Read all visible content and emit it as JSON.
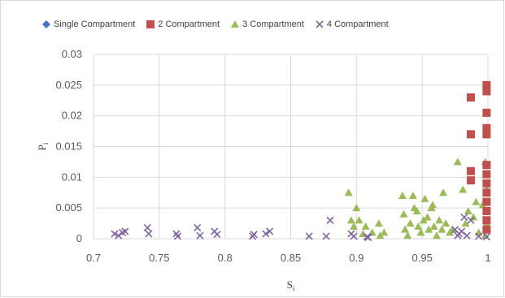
{
  "chart_data": {
    "type": "scatter",
    "title": "",
    "xlabel": "S",
    "xlabel_sub": "i",
    "ylabel": "P",
    "ylabel_sub": "i",
    "xlim": [
      0.7,
      1.0
    ],
    "ylim": [
      0,
      0.03
    ],
    "xticks": [
      "0.7",
      "0.75",
      "0.8",
      "0.85",
      "0.9",
      "0.95",
      "1"
    ],
    "yticks": [
      "0",
      "0.005",
      "0.01",
      "0.015",
      "0.02",
      "0.025",
      "0.03"
    ],
    "grid": true,
    "legend_position": "top",
    "series": [
      {
        "name": "Single Compartment",
        "marker": "diamond",
        "color": "#4472c4",
        "points": []
      },
      {
        "name": "2 Compartment",
        "marker": "square",
        "color": "#c0504d",
        "points": [
          [
            0.987,
            0.023
          ],
          [
            0.987,
            0.017
          ],
          [
            0.987,
            0.011
          ],
          [
            0.987,
            0.0095
          ],
          [
            0.999,
            0.025
          ],
          [
            0.999,
            0.024
          ],
          [
            0.999,
            0.0205
          ],
          [
            0.999,
            0.018
          ],
          [
            0.999,
            0.017
          ],
          [
            0.999,
            0.012
          ],
          [
            0.999,
            0.0105
          ],
          [
            0.999,
            0.009
          ],
          [
            0.999,
            0.0075
          ],
          [
            0.999,
            0.006
          ],
          [
            0.999,
            0.0045
          ],
          [
            0.999,
            0.003
          ],
          [
            0.999,
            0.0015
          ]
        ]
      },
      {
        "name": "3 Compartment",
        "marker": "triangle",
        "color": "#9bbb59",
        "points": [
          [
            0.894,
            0.0075
          ],
          [
            0.896,
            0.003
          ],
          [
            0.898,
            0.002
          ],
          [
            0.9,
            0.005
          ],
          [
            0.902,
            0.003
          ],
          [
            0.905,
            0.0008
          ],
          [
            0.907,
            0.002
          ],
          [
            0.912,
            0.001
          ],
          [
            0.917,
            0.0025
          ],
          [
            0.918,
            0.0005
          ],
          [
            0.921,
            0.001
          ],
          [
            0.935,
            0.007
          ],
          [
            0.936,
            0.004
          ],
          [
            0.937,
            0.0015
          ],
          [
            0.939,
            0.0005
          ],
          [
            0.941,
            0.0025
          ],
          [
            0.943,
            0.007
          ],
          [
            0.944,
            0.005
          ],
          [
            0.946,
            0.0045
          ],
          [
            0.947,
            0.002
          ],
          [
            0.949,
            0.001
          ],
          [
            0.951,
            0.003
          ],
          [
            0.952,
            0.0065
          ],
          [
            0.954,
            0.0035
          ],
          [
            0.955,
            0.0015
          ],
          [
            0.957,
            0.005
          ],
          [
            0.958,
            0.0055
          ],
          [
            0.959,
            0.002
          ],
          [
            0.961,
            0.0005
          ],
          [
            0.963,
            0.003
          ],
          [
            0.965,
            0.0015
          ],
          [
            0.966,
            0.0075
          ],
          [
            0.968,
            0.0025
          ],
          [
            0.971,
            0.001
          ],
          [
            0.973,
            0.0015
          ],
          [
            0.977,
            0.0125
          ],
          [
            0.981,
            0.008
          ],
          [
            0.983,
            0.0025
          ],
          [
            0.985,
            0.0045
          ],
          [
            0.989,
            0.0035
          ],
          [
            0.991,
            0.006
          ],
          [
            0.993,
            0.001
          ],
          [
            0.996,
            0.0055
          ],
          [
            0.998,
            0.0125
          ],
          [
            0.999,
            0.008
          ],
          [
            0.999,
            0.0045
          ],
          [
            0.999,
            0.0025
          ],
          [
            0.998,
            0.0005
          ]
        ]
      },
      {
        "name": "4 Compartment",
        "marker": "x",
        "color": "#8064a2",
        "points": [
          [
            0.716,
            0.0008
          ],
          [
            0.719,
            0.0005
          ],
          [
            0.722,
            0.001
          ],
          [
            0.724,
            0.0012
          ],
          [
            0.741,
            0.0018
          ],
          [
            0.742,
            0.0008
          ],
          [
            0.763,
            0.0008
          ],
          [
            0.764,
            0.0004
          ],
          [
            0.779,
            0.0018
          ],
          [
            0.781,
            0.0005
          ],
          [
            0.792,
            0.0012
          ],
          [
            0.794,
            0.0007
          ],
          [
            0.821,
            0.0004
          ],
          [
            0.822,
            0.0007
          ],
          [
            0.831,
            0.0008
          ],
          [
            0.834,
            0.0012
          ],
          [
            0.864,
            0.0004
          ],
          [
            0.877,
            0.0004
          ],
          [
            0.88,
            0.003
          ],
          [
            0.896,
            0.0008
          ],
          [
            0.898,
            0.0004
          ],
          [
            0.908,
            0.0003
          ],
          [
            0.909,
            0.0002
          ],
          [
            0.975,
            0.0015
          ],
          [
            0.977,
            0.0005
          ],
          [
            0.978,
            0.0008
          ],
          [
            0.98,
            0.0012
          ],
          [
            0.982,
            0.0035
          ],
          [
            0.984,
            0.0005
          ],
          [
            0.987,
            0.003
          ],
          [
            0.993,
            0.0004
          ],
          [
            0.999,
            0.0003
          ]
        ]
      }
    ]
  }
}
